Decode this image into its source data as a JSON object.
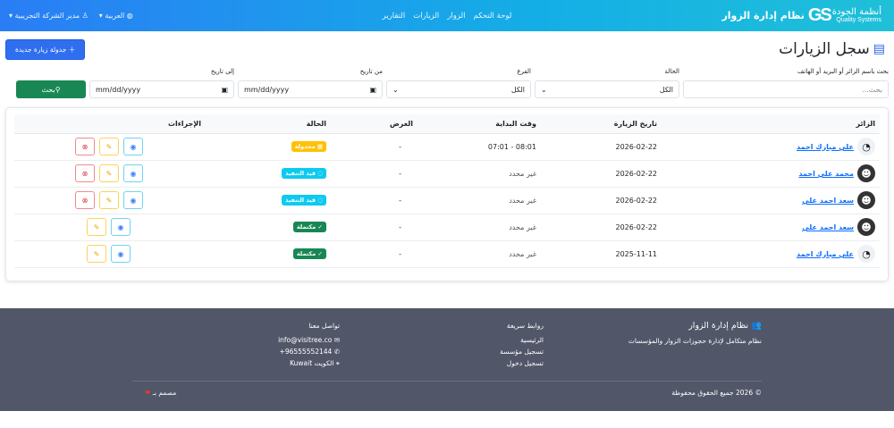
{
  "nav": {
    "logo_ar": "أنظمة الجودة",
    "logo_en": "Quality Systems",
    "logo_mark": "GS",
    "app_title": "نظام إدارة الزوار",
    "links": [
      "لوحة التحكم",
      "الزوار",
      "الزيارات",
      "التقارير"
    ],
    "language": "العربية",
    "user": "مدير الشركة التجريبية"
  },
  "page": {
    "title": "سجل الزيارات",
    "new_button": "جدولة زيارة جديدة"
  },
  "filters": {
    "search_label": "بحث باسم الزائر أو البريد أو الهاتف",
    "search_placeholder": "بحث...",
    "status_label": "الحالة",
    "status_value": "الكل",
    "branch_label": "الفرع",
    "branch_value": "الكل",
    "from_label": "من تاريخ",
    "from_value": "mm/dd/yyyy",
    "to_label": "إلى تاريخ",
    "to_value": "mm/dd/yyyy",
    "search_button": "بحث"
  },
  "table": {
    "headers": [
      "الزائر",
      "تاريخ الزيارة",
      "وقت البداية",
      "الغرض",
      "الحالة",
      "الإجراءات"
    ],
    "rows": [
      {
        "visitor": "علي مبارك احمد",
        "date": "2026-02-22",
        "time": "07:01 - 08:01",
        "purpose": "-",
        "status": "مجدولة",
        "status_color": "#ffc107"
      },
      {
        "visitor": "محمد علي احمد",
        "date": "2026-02-22",
        "time": "غير محدد",
        "purpose": "-",
        "status": "قيد التنفيذ",
        "status_color": "#0dcaf0"
      },
      {
        "visitor": "سعد احمد علي",
        "date": "2026-02-22",
        "time": "غير محدد",
        "purpose": "-",
        "status": "قيد التنفيذ",
        "status_color": "#0dcaf0"
      },
      {
        "visitor": "سعد احمد علي",
        "date": "2026-02-22",
        "time": "غير محدد",
        "purpose": "-",
        "status": "مكتملة",
        "status_color": "#198754"
      },
      {
        "visitor": "علي مبارك احمد",
        "date": "2025-11-11",
        "time": "غير محدد",
        "purpose": "-",
        "status": "مكتملة",
        "status_color": "#198754"
      }
    ]
  },
  "footer": {
    "brand": "نظام إدارة الزوار",
    "tagline": "نظام متكامل لإدارة حجوزات الزوار والمؤسسات",
    "links_title": "روابط سريعة",
    "links": [
      "الرئيسية",
      "تسجيل مؤسسة",
      "تسجيل دخول"
    ],
    "contact_title": "تواصل معنا",
    "email": "info@visitree.co",
    "phone": "+96555552144",
    "location": "الكويت Kuwait",
    "copyright": "© 2026 جميع الحقوق محفوظة",
    "made_by": "مصمم بـ"
  }
}
